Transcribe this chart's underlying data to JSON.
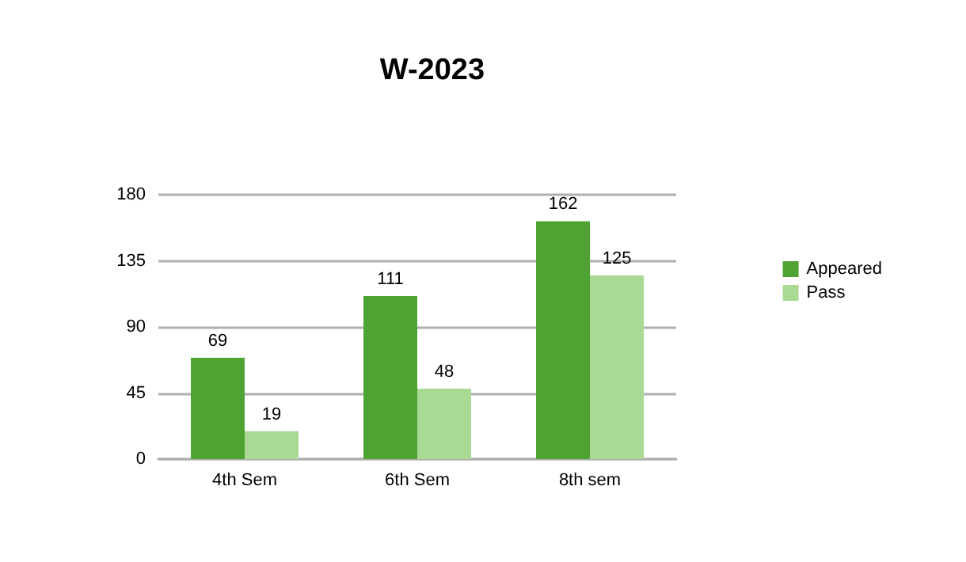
{
  "chart_data": {
    "type": "bar",
    "title": "W-2023",
    "categories": [
      "4th Sem",
      "6th Sem",
      "8th sem"
    ],
    "series": [
      {
        "name": "Appeared",
        "color": "#4ea332",
        "values": [
          69,
          111,
          162
        ]
      },
      {
        "name": "Pass",
        "color": "#a9d993",
        "values": [
          19,
          48,
          125
        ]
      }
    ],
    "ylim": [
      0,
      180
    ],
    "yticks": [
      0,
      45,
      90,
      135,
      180
    ],
    "grid": "y",
    "legend": "right",
    "data_labels": true
  }
}
